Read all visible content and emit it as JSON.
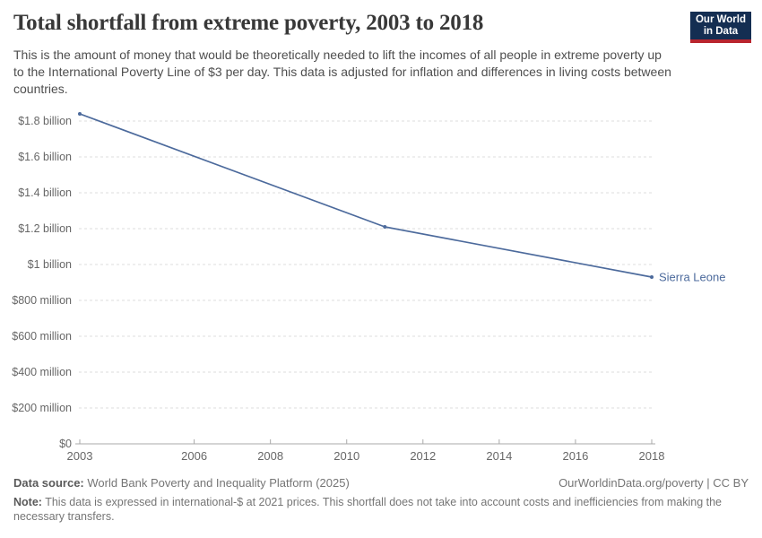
{
  "header": {
    "title": "Total shortfall from extreme poverty, 2003 to 2018",
    "subtitle": "This is the amount of money that would be theoretically needed to lift the incomes of all people in extreme poverty up to the International Poverty Line of $3 per day. This data is adjusted for inflation and differences in living costs between countries.",
    "logo": {
      "line1": "Our World",
      "line2": "in Data",
      "bg_color": "#142e52",
      "bar_color": "#b9252e"
    }
  },
  "chart_data": {
    "type": "line",
    "title": "Total shortfall from extreme poverty, 2003 to 2018",
    "xlabel": "",
    "ylabel": "",
    "unit": "international-$ at 2021 prices",
    "xlim": [
      2003,
      2018
    ],
    "ylim_billion": [
      0,
      1.8
    ],
    "grid": true,
    "legend_position": "end-of-line-label",
    "x_ticks": [
      2003,
      2006,
      2008,
      2010,
      2012,
      2014,
      2016,
      2018
    ],
    "y_ticks": [
      {
        "value_billion": 0,
        "label": "$0"
      },
      {
        "value_billion": 0.2,
        "label": "$200 million"
      },
      {
        "value_billion": 0.4,
        "label": "$400 million"
      },
      {
        "value_billion": 0.6,
        "label": "$600 million"
      },
      {
        "value_billion": 0.8,
        "label": "$800 million"
      },
      {
        "value_billion": 1.0,
        "label": "$1 billion"
      },
      {
        "value_billion": 1.2,
        "label": "$1.2 billion"
      },
      {
        "value_billion": 1.4,
        "label": "$1.4 billion"
      },
      {
        "value_billion": 1.6,
        "label": "$1.6 billion"
      },
      {
        "value_billion": 1.8,
        "label": "$1.8 billion"
      }
    ],
    "series": [
      {
        "name": "Sierra Leone",
        "color": "#4C6A9C",
        "years": [
          2003,
          2011,
          2018
        ],
        "values_billion_usd": [
          1.84,
          1.21,
          0.93
        ]
      }
    ],
    "style": {
      "gridline_color": "#dddddd",
      "axis_color": "#a9a9a9",
      "tick_label_color": "#676767"
    }
  },
  "footer": {
    "datasource_label": "Data source:",
    "datasource_value": "World Bank Poverty and Inequality Platform (2025)",
    "attribution": "OurWorldinData.org/poverty | CC BY",
    "note_label": "Note:",
    "note_value": "This data is expressed in international-$ at 2021 prices. This shortfall does not take into account costs and inefficiencies from making the necessary transfers."
  }
}
